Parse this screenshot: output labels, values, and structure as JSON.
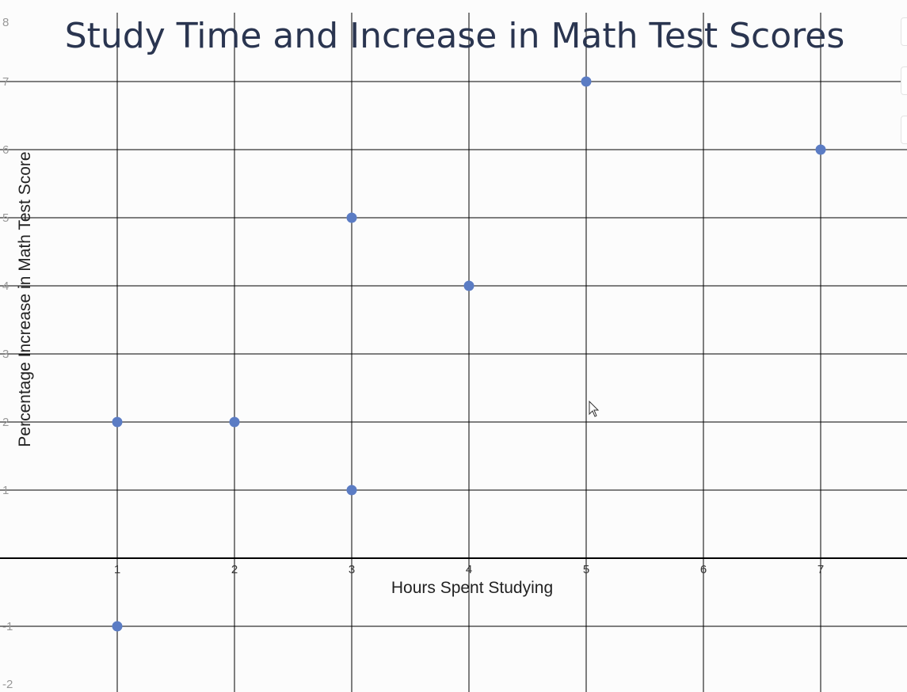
{
  "chart_data": {
    "type": "scatter",
    "title": "Study Time and Increase in Math Test Scores",
    "xlabel": "Hours Spent Studying",
    "ylabel": "Percentage Increase in Math Test Score",
    "x_ticks": [
      1,
      2,
      3,
      4,
      5,
      6,
      7
    ],
    "y_ticks": [
      -2,
      -1,
      1,
      2,
      3,
      4,
      5,
      6,
      7,
      8
    ],
    "xlim": [
      0,
      7.75
    ],
    "ylim": [
      -2,
      8
    ],
    "grid": true,
    "points": [
      {
        "x": 1,
        "y": 2
      },
      {
        "x": 1,
        "y": -1
      },
      {
        "x": 2,
        "y": 2
      },
      {
        "x": 3,
        "y": 5
      },
      {
        "x": 3,
        "y": 1
      },
      {
        "x": 4,
        "y": 4
      },
      {
        "x": 5,
        "y": 7
      },
      {
        "x": 7,
        "y": 6
      }
    ],
    "marker_color": "#5b7cc4"
  },
  "colors": {
    "background": "#fcfcfc",
    "gridline": "#000000",
    "title": "#2a3550"
  },
  "icons": {
    "cursor": "mouse-pointer-icon"
  }
}
